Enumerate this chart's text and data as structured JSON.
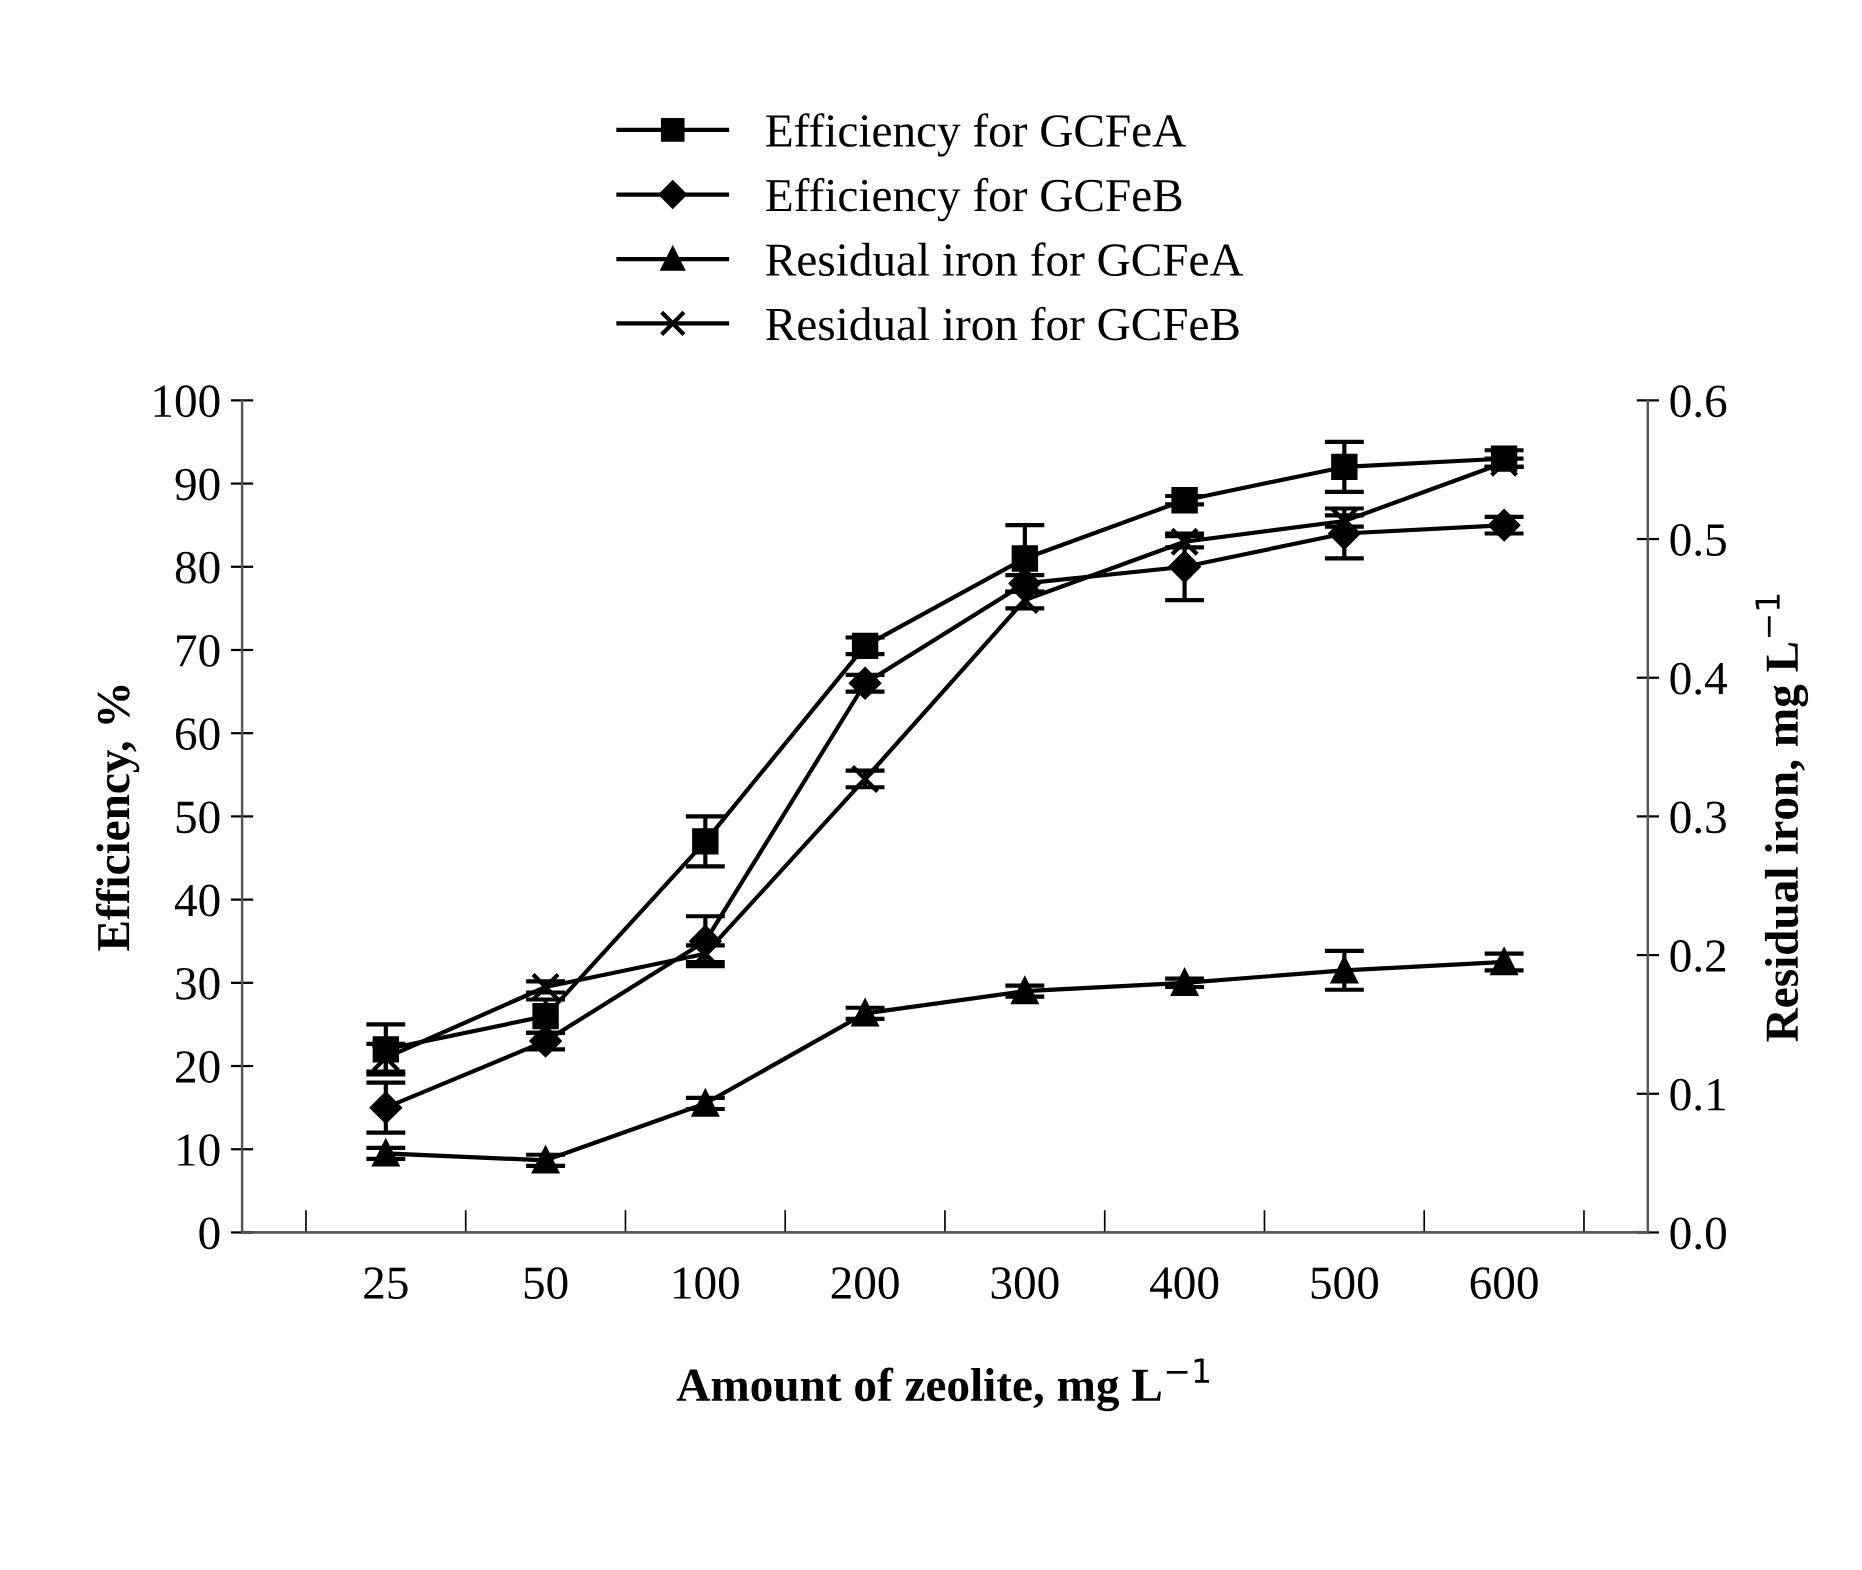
{
  "chart_data": {
    "type": "line",
    "xlabel": "Amount of zeolite, mg L$^{−1}$",
    "ylabel": "Efficiency, %",
    "y2label": "Residual iron, mg L$^{−1}$",
    "categories": [
      "25",
      "50",
      "100",
      "200",
      "300",
      "400",
      "500",
      "600"
    ],
    "series": [
      {
        "name": "Efficiency for GCFeA",
        "color": "#000000",
        "marker": "square",
        "values": [
          22,
          26,
          47,
          70.5,
          81,
          88,
          92,
          93
        ],
        "errors": [
          3,
          2,
          3,
          1,
          4,
          0.5,
          3,
          1
        ]
      },
      {
        "name": "Efficiency for GCFeB",
        "color": "#000000",
        "marker": "diamond",
        "values": [
          15,
          23,
          35,
          66,
          78,
          80,
          84,
          85
        ],
        "errors": [
          3,
          1,
          3,
          1,
          1,
          4,
          3,
          1
        ]
      },
      {
        "name": "Residual iron for GCFeA",
        "color": "#000000",
        "marker": "triangle",
        "axis": "y2",
        "values": [
          0.057,
          0.052,
          0.093,
          0.158,
          0.174,
          0.18,
          0.189,
          0.195
        ],
        "errors": [
          0.004,
          0.004,
          0.004,
          0.004,
          0.004,
          0.003,
          0.014,
          0.006
        ]
      },
      {
        "name": "Residual iron for GCFeB",
        "color": "#000000",
        "marker": "cross",
        "axis": "y2",
        "values": [
          0.126,
          0.177,
          0.201,
          0.327,
          0.456,
          0.498,
          0.513,
          0.555
        ],
        "errors": [
          0.01,
          0.004,
          0.006,
          0.006,
          0.006,
          0.004,
          0.004,
          0.003
        ]
      }
    ],
    "ylim": [
      0,
      100
    ],
    "yticks": [
      0,
      10,
      20,
      30,
      40,
      50,
      60,
      70,
      80,
      90,
      100
    ],
    "y2lim": [
      0,
      0.6
    ],
    "y2ticks": [
      {
        "value": 0,
        "label": "0.0"
      },
      0.1,
      0.2,
      0.3,
      0.4,
      0.5,
      0.6
    ],
    "legend": "top",
    "grid": false,
    "line_style": "solid"
  }
}
